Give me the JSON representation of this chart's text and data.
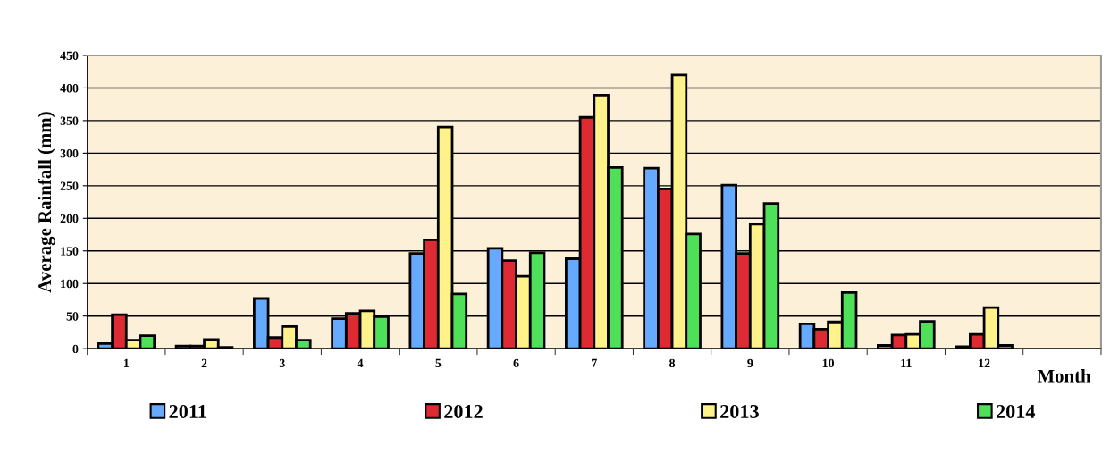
{
  "chart_data": {
    "type": "bar",
    "xlabel": "Month",
    "ylabel": "Average Rainfall (mm)",
    "categories": [
      "1",
      "2",
      "3",
      "4",
      "5",
      "6",
      "7",
      "8",
      "9",
      "10",
      "11",
      "12",
      null
    ],
    "series": [
      {
        "name": "2011",
        "color": "#66aaff",
        "values": [
          8,
          4,
          77,
          46,
          146,
          154,
          138,
          277,
          251,
          38,
          5,
          3,
          null
        ]
      },
      {
        "name": "2012",
        "color": "#dd2a33",
        "values": [
          52,
          4,
          17,
          54,
          167,
          135,
          355,
          245,
          146,
          30,
          21,
          22,
          null
        ]
      },
      {
        "name": "2013",
        "color": "#fff28a",
        "values": [
          13,
          14,
          34,
          58,
          340,
          111,
          389,
          420,
          191,
          41,
          22,
          63,
          null
        ]
      },
      {
        "name": "2014",
        "color": "#4fe05a",
        "values": [
          20,
          2,
          13,
          49,
          84,
          147,
          278,
          176,
          223,
          86,
          42,
          5,
          null
        ]
      }
    ],
    "ylim": [
      0,
      450
    ],
    "yticks": [
      0,
      50,
      100,
      150,
      200,
      250,
      300,
      350,
      400,
      450
    ],
    "grid": "y",
    "legend": "bottom"
  }
}
